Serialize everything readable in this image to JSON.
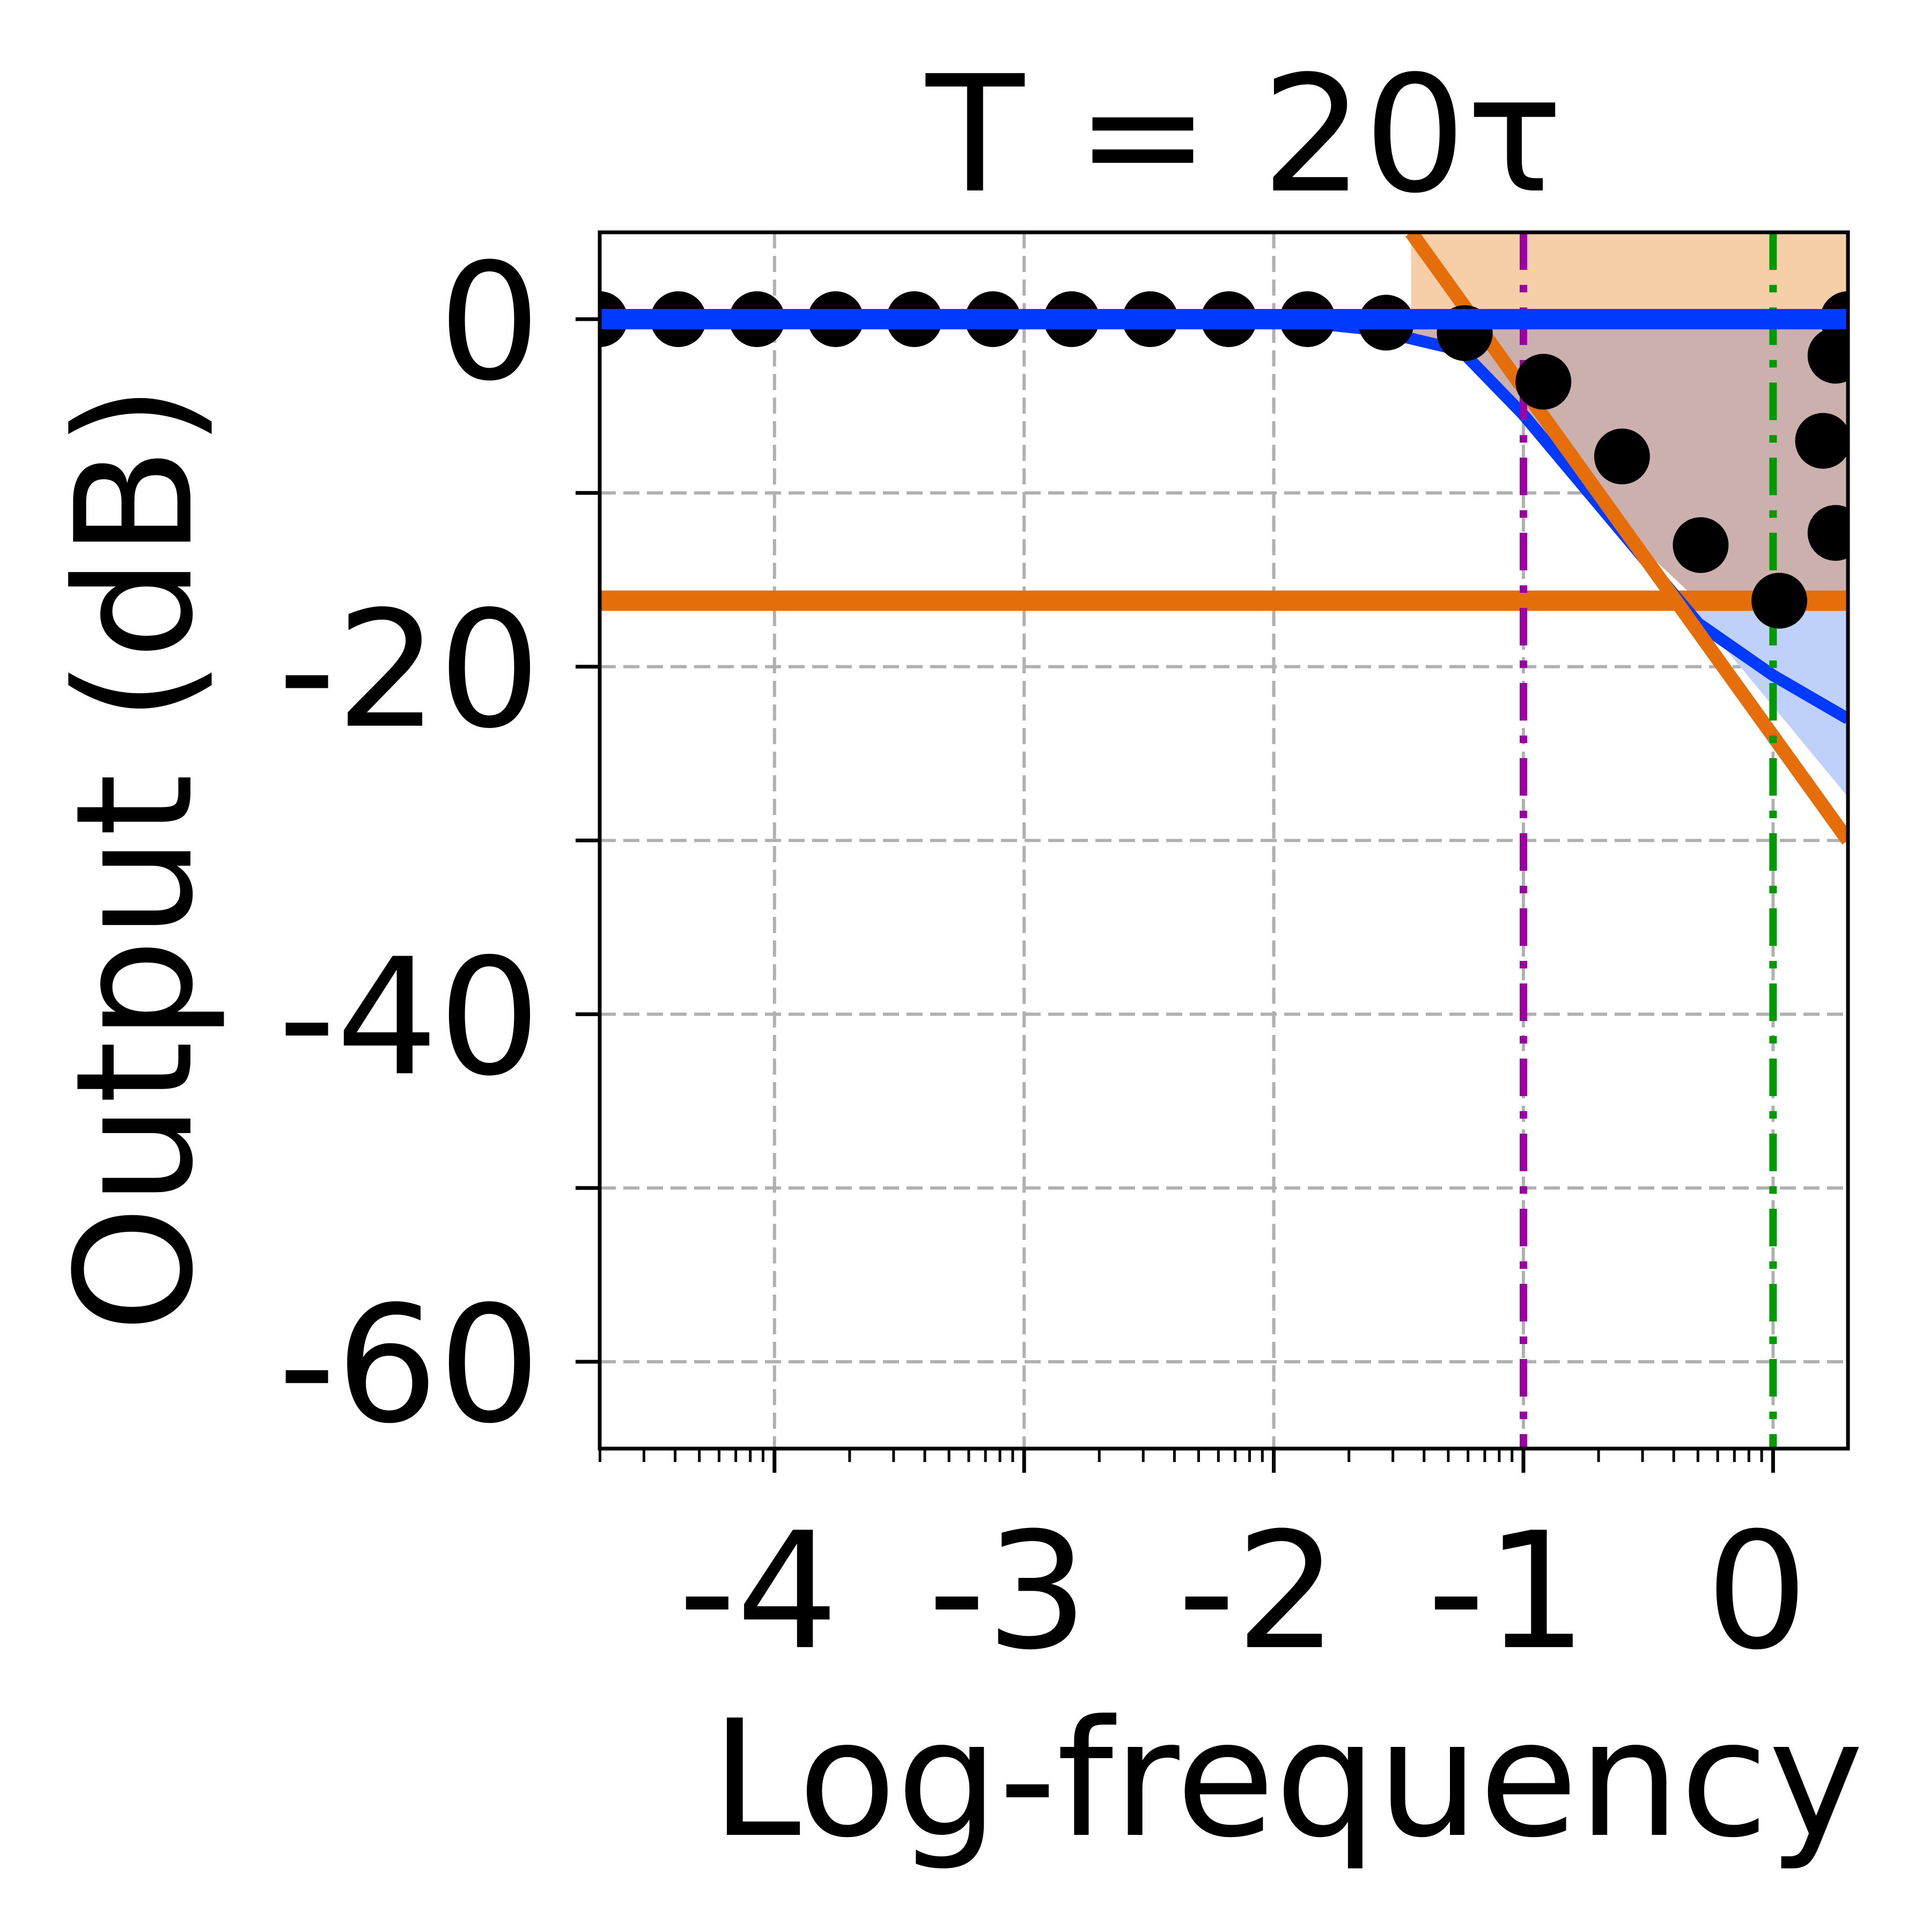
{
  "chart_data": {
    "type": "line",
    "title": "T = 20τ",
    "xlabel": "Log-frequency",
    "ylabel": "Output (dB)",
    "x_scale": "log10",
    "xlim": [
      -4.7,
      0.3
    ],
    "ylim": [
      -65,
      5
    ],
    "x_ticks": [
      -4,
      -3,
      -2,
      -1,
      0
    ],
    "x_tick_labels": [
      "-4",
      "-3",
      "-2",
      "-1",
      "0"
    ],
    "y_ticks": [
      0,
      -10,
      -20,
      -30,
      -40,
      -50,
      -60
    ],
    "y_tick_labels": [
      "0",
      "",
      "-20",
      "",
      "-40",
      "",
      "-60"
    ],
    "grid": true,
    "scatter_points": {
      "x": [
        -4.7,
        -4.385,
        -4.07,
        -3.755,
        -3.44,
        -3.125,
        -2.81,
        -2.495,
        -2.18,
        -1.865,
        -1.55,
        -1.235,
        -0.92,
        -0.605,
        -0.29,
        0.025,
        0.25,
        0.2,
        0.25,
        0.3
      ],
      "y": [
        0,
        0,
        0,
        0,
        0,
        0,
        0,
        0,
        0,
        0,
        -0.2,
        -0.8,
        -3.6,
        -7.9,
        -13.0,
        -16.2,
        -12.3,
        -7.0,
        -2.1,
        0
      ]
    },
    "series": [
      {
        "x": [
          -4.7,
          -2.0,
          -1.6,
          -1.25,
          -1.0,
          -0.65,
          -0.3,
          0.0,
          0.3
        ],
        "y": [
          0,
          0,
          -0.6,
          -1.8,
          -5.5,
          -11.5,
          -17.5,
          -20.5,
          -23.0
        ]
      },
      {
        "x": [
          -4.7,
          0.3
        ],
        "y": [
          0,
          0
        ]
      },
      {
        "x": [
          -4.7,
          0.3
        ],
        "y": [
          -16.2,
          -16.2
        ]
      },
      {
        "x": [
          -1.45,
          0.3
        ],
        "y": [
          5,
          -30
        ]
      }
    ],
    "vlines": [
      {
        "x": -1.0,
        "style": "dash-dot",
        "color": "#9b00a3"
      },
      {
        "x": 0.0,
        "style": "dash-dot",
        "color": "#009900"
      }
    ],
    "shaded_regions": [
      {
        "color": "#f6cfa8",
        "label_x_range": [
          -1.45,
          0.3
        ]
      },
      {
        "color": "#ccb0ad",
        "label_x_range": [
          -1.45,
          0.3
        ]
      },
      {
        "color": "#bfd0fa",
        "label_x_range": [
          -0.35,
          0.3
        ]
      }
    ],
    "colors": {
      "blue": "#0039ff",
      "orange": "#e66e0a",
      "purple": "#9b00a3",
      "green": "#009900",
      "grid": "#b0b0b0",
      "points": "#000000"
    }
  }
}
